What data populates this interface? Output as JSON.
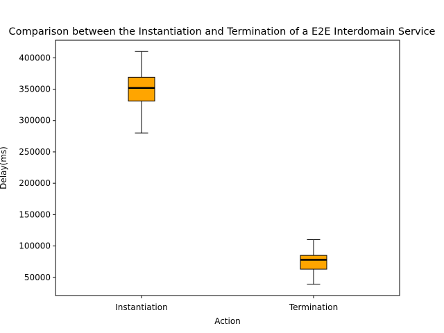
{
  "chart_data": {
    "type": "box",
    "title": "Comparison between the Instantiation and Termination of a E2E Interdomain Service",
    "xlabel": "Action",
    "ylabel": "Delay(ms)",
    "ylim": [
      21000,
      428000
    ],
    "yticks": [
      50000,
      100000,
      150000,
      200000,
      250000,
      300000,
      350000,
      400000
    ],
    "ytick_labels": [
      "50000",
      "100000",
      "150000",
      "200000",
      "250000",
      "300000",
      "350000",
      "400000"
    ],
    "categories": [
      "Instantiation",
      "Termination"
    ],
    "boxes": [
      {
        "category": "Instantiation",
        "whisker_low": 280000,
        "q1": 331000,
        "median": 352000,
        "q3": 369000,
        "whisker_high": 410000
      },
      {
        "category": "Termination",
        "whisker_low": 39000,
        "q1": 63000,
        "median": 78000,
        "q3": 85000,
        "whisker_high": 110000
      }
    ],
    "colors": {
      "box_fill": "#FFA500",
      "box_edge": "#000000",
      "median": "#000000"
    },
    "grid": false,
    "legend": "none"
  }
}
